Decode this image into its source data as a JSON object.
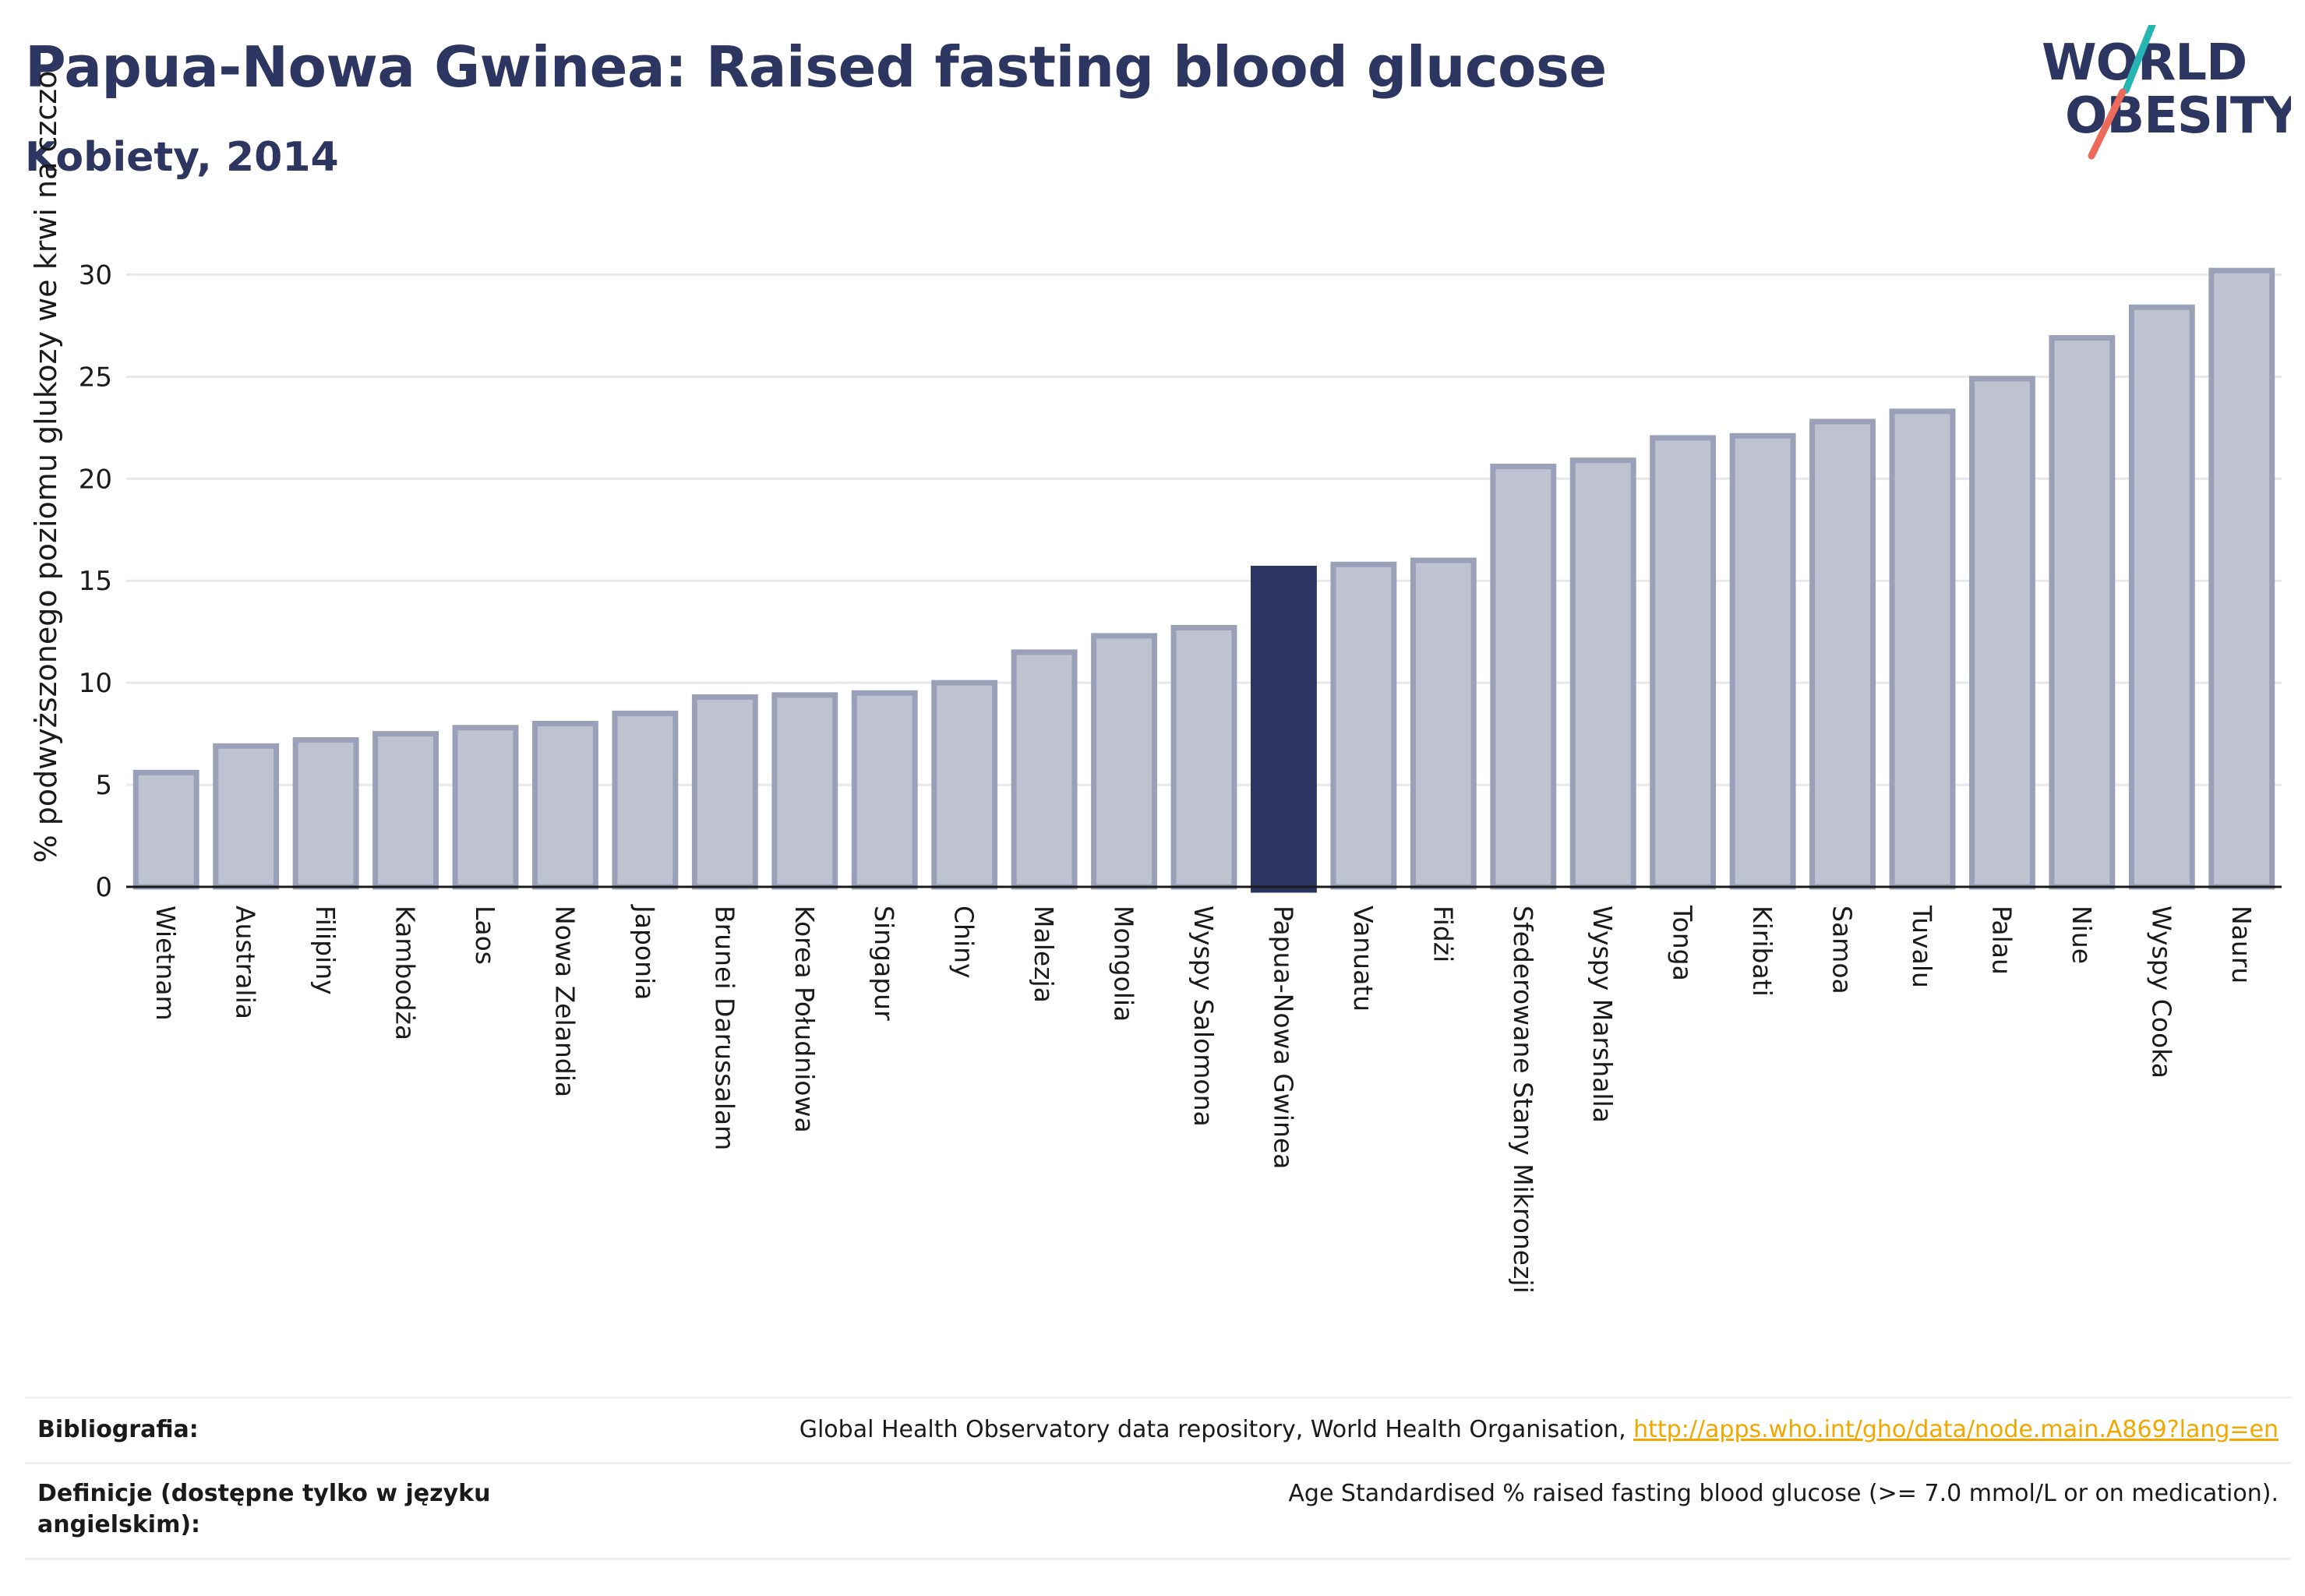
{
  "title": "Papua-Nowa Gwinea: Raised fasting blood glucose",
  "subtitle": "Kobiety, 2014",
  "logo": {
    "line1": "WORLD",
    "line2": "OBESITY"
  },
  "colors": {
    "bar": "#bfc3d1",
    "bar_stroke": "#9aa0b8",
    "highlight": "#2b3561",
    "title": "#2d3561",
    "link": "#f0a800"
  },
  "chart_data": {
    "type": "bar",
    "title": "Papua-Nowa Gwinea: Raised fasting blood glucose",
    "subtitle": "Kobiety, 2014",
    "xlabel": "",
    "ylabel": "% podwyższonego poziomu glukozy we krwi na czczo",
    "ylim": [
      0,
      32
    ],
    "yticks": [
      0,
      5,
      10,
      15,
      20,
      25,
      30
    ],
    "grid": true,
    "highlight": "Papua-Nowa Gwinea",
    "categories": [
      "Wietnam",
      "Australia",
      "Filipiny",
      "Kambodża",
      "Laos",
      "Nowa Zelandia",
      "Japonia",
      "Brunei Darussalam",
      "Korea Południowa",
      "Singapur",
      "Chiny",
      "Malezja",
      "Mongolia",
      "Wyspy Salomona",
      "Papua-Nowa Gwinea",
      "Vanuatu",
      "Fidżi",
      "Sfederowane Stany Mikronezji",
      "Wyspy Marshalla",
      "Tonga",
      "Kiribati",
      "Samoa",
      "Tuvalu",
      "Palau",
      "Niue",
      "Wyspy Cooka",
      "Nauru"
    ],
    "values": [
      5.6,
      6.9,
      7.2,
      7.5,
      7.8,
      8.0,
      8.5,
      9.3,
      9.4,
      9.5,
      10.0,
      11.5,
      12.3,
      12.7,
      15.6,
      15.8,
      16.0,
      20.6,
      20.9,
      22.0,
      22.1,
      22.8,
      23.3,
      24.9,
      26.9,
      28.4,
      30.2
    ]
  },
  "footer": {
    "bibliography_label": "Bibliografia:",
    "bibliography_text": "Global Health Observatory data repository, World Health Organisation, ",
    "bibliography_link": "http://apps.who.int/gho/data/node.main.A869?lang=en",
    "definitions_label": "Definicje (dostępne tylko w języku angielskim):",
    "definitions_text": "Age Standardised % raised fasting blood glucose (>= 7.0 mmol/L or on medication)."
  }
}
